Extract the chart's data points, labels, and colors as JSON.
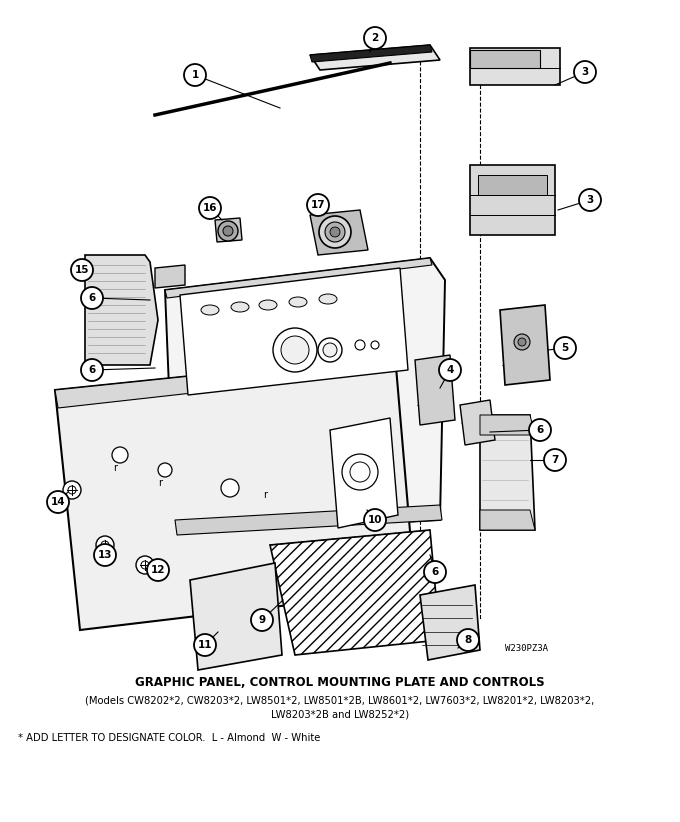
{
  "title": "GRAPHIC PANEL, CONTROL MOUNTING PLATE AND CONTROLS",
  "subtitle_line1": "(Models CW8202*2, CW8203*2, LW8501*2, LW8501*2B, LW8601*2, LW7603*2, LW8201*2, LW8203*2,",
  "subtitle_line2": "LW8203*2B and LW8252*2)",
  "footnote": "* ADD LETTER TO DESIGNATE COLOR.  L - Almond  W - White",
  "part_number": "W230PZ3A",
  "background_color": "#ffffff",
  "text_color": "#000000"
}
